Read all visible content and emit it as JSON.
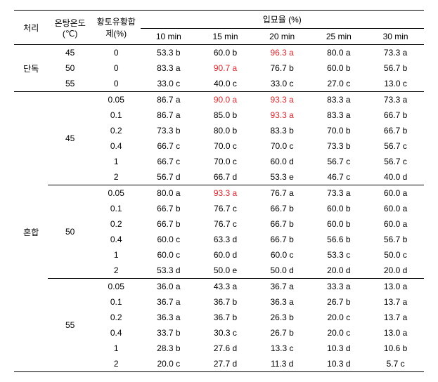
{
  "headers": {
    "treatment": "처리",
    "temp": "온탕온도\n(℃)",
    "agent": "황토유황합\n제(%)",
    "germTop": "입묘율 (%)",
    "mins": [
      "10 min",
      "15 min",
      "20 min",
      "25 min",
      "30 min"
    ]
  },
  "groupLabels": {
    "single": "단독",
    "mixed": "혼합"
  },
  "section1": {
    "rows": [
      {
        "temp": "45",
        "agent": "0",
        "v": [
          "53.3 b",
          "60.0 b",
          "96.3 a",
          "80.0 a",
          "73.3 a"
        ],
        "redIdx": [
          2
        ]
      },
      {
        "temp": "50",
        "agent": "0",
        "v": [
          "83.3 a",
          "90.7 a",
          "76.7 b",
          "60.0 b",
          "56.7 b"
        ],
        "redIdx": [
          1
        ]
      },
      {
        "temp": "55",
        "agent": "0",
        "v": [
          "33.0 c",
          "40.0 c",
          "33.0 c",
          "27.0 c",
          "13.0 c"
        ],
        "redIdx": []
      }
    ]
  },
  "section2": {
    "blocks": [
      {
        "temp": "45",
        "rows": [
          {
            "agent": "0.05",
            "v": [
              "86.7 a",
              "90.0 a",
              "93.3 a",
              "83.3 a",
              "73.3 a"
            ],
            "redIdx": [
              1,
              2
            ]
          },
          {
            "agent": "0.1",
            "v": [
              "86.7 a",
              "85.0 b",
              "93.3 a",
              "83.3 a",
              "66.7 b"
            ],
            "redIdx": [
              2
            ]
          },
          {
            "agent": "0.2",
            "v": [
              "73.3 b",
              "80.0 b",
              "83.3 b",
              "70.0 b",
              "66.7 b"
            ],
            "redIdx": []
          },
          {
            "agent": "0.4",
            "v": [
              "66.7 c",
              "70.0 c",
              "70.0 c",
              "73.3 b",
              "56.7 c"
            ],
            "redIdx": []
          },
          {
            "agent": "1",
            "v": [
              "66.7 c",
              "70.0 c",
              "60.0 d",
              "56.7 c",
              "56.7 c"
            ],
            "redIdx": []
          },
          {
            "agent": "2",
            "v": [
              "56.7 d",
              "66.7 d",
              "53.3 e",
              "46.7 c",
              "40.0 d"
            ],
            "redIdx": []
          }
        ]
      },
      {
        "temp": "50",
        "rows": [
          {
            "agent": "0.05",
            "v": [
              "80.0 a",
              "93.3 a",
              "76.7 a",
              "73.3 a",
              "60.0 a"
            ],
            "redIdx": [
              1
            ]
          },
          {
            "agent": "0.1",
            "v": [
              "66.7 b",
              "76.7 c",
              "66.7 b",
              "60.0 b",
              "60.0 a"
            ],
            "redIdx": []
          },
          {
            "agent": "0.2",
            "v": [
              "66.7 b",
              "76.7 c",
              "66.7 b",
              "60.0 b",
              "60.0 a"
            ],
            "redIdx": []
          },
          {
            "agent": "0.4",
            "v": [
              "60.0 c",
              "63.3 d",
              "66.7 b",
              "56.6 b",
              "56.7 b"
            ],
            "redIdx": []
          },
          {
            "agent": "1",
            "v": [
              "60.0 c",
              "60.0 d",
              "60.0 c",
              "53.3 c",
              "50.0 c"
            ],
            "redIdx": []
          },
          {
            "agent": "2",
            "v": [
              "53.3 d",
              "50.0 e",
              "50.0 d",
              "20.0 d",
              "20.0 d"
            ],
            "redIdx": []
          }
        ]
      },
      {
        "temp": "55",
        "rows": [
          {
            "agent": "0.05",
            "v": [
              "36.0 a",
              "43.3 a",
              "36.7 a",
              "33.3 a",
              "13.0 a"
            ],
            "redIdx": []
          },
          {
            "agent": "0.1",
            "v": [
              "36.7 a",
              "36.7 b",
              "36.3 a",
              "26.7 b",
              "13.7 a"
            ],
            "redIdx": []
          },
          {
            "agent": "0.2",
            "v": [
              "36.3 a",
              "36.7 b",
              "26.3 b",
              "20.0 c",
              "13.7 a"
            ],
            "redIdx": []
          },
          {
            "agent": "0.4",
            "v": [
              "33.7 b",
              "30.3 c",
              "26.7 b",
              "20.0 c",
              "13.0 a"
            ],
            "redIdx": []
          },
          {
            "agent": "1",
            "v": [
              "28.3 b",
              "27.6 d",
              "13.3 c",
              "10.3 d",
              "10.6 b"
            ],
            "redIdx": []
          },
          {
            "agent": "2",
            "v": [
              "20.0 c",
              "27.7 d",
              "11.3 d",
              "10.3 d",
              "5.7 c"
            ],
            "redIdx": []
          }
        ]
      }
    ]
  },
  "style": {
    "redColor": "#d9262c",
    "textColor": "#000000",
    "bgColor": "#ffffff",
    "fontSize": 12
  }
}
